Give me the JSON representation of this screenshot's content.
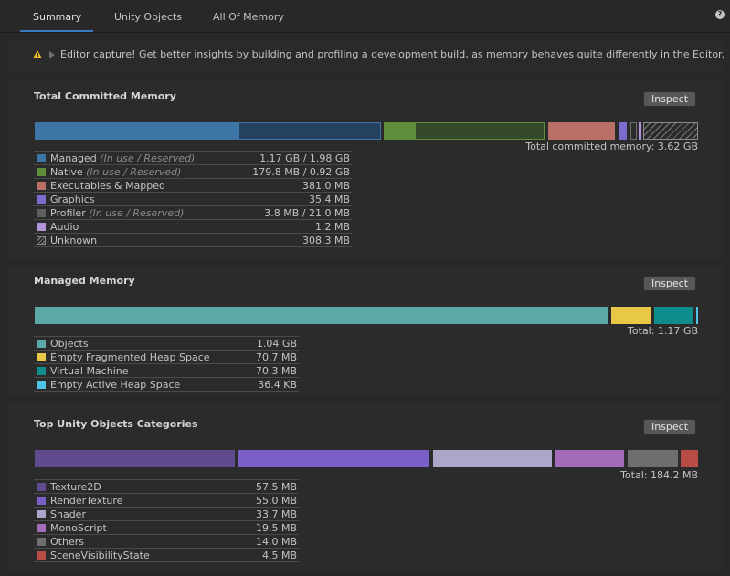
{
  "tabs": [
    {
      "label": "Summary"
    },
    {
      "label": "Unity Objects"
    },
    {
      "label": "All Of Memory"
    }
  ],
  "help_icon": "?",
  "notice": {
    "icon": "warning-icon",
    "text": "Editor capture! Get better insights by building and profiling a development build, as memory behaves quite differently in the Editor."
  },
  "total_committed": {
    "title": "Total Committed Memory",
    "inspect_label": "Inspect",
    "total_text": "Total committed memory: 3.62 GB",
    "items": [
      {
        "name": "Managed",
        "note": "(In use / Reserved)",
        "value": "1.17 GB / 1.98 GB",
        "color": "#3d75a6"
      },
      {
        "name": "Native",
        "note": "(In use / Reserved)",
        "value": "179.8 MB / 0.92 GB",
        "color": "#5f8e3a"
      },
      {
        "name": "Executables & Mapped",
        "note": "",
        "value": "381.0 MB",
        "color": "#b87067"
      },
      {
        "name": "Graphics",
        "note": "",
        "value": "35.4 MB",
        "color": "#7c6cd0"
      },
      {
        "name": "Profiler",
        "note": "(In use / Reserved)",
        "value": "3.8 MB / 21.0 MB",
        "color": "#5e5e5e"
      },
      {
        "name": "Audio",
        "note": "",
        "value": "1.2 MB",
        "color": "#b394d8"
      },
      {
        "name": "Unknown",
        "note": "",
        "value": "308.3 MB",
        "color": "#444444"
      }
    ]
  },
  "managed_memory": {
    "title": "Managed Memory",
    "inspect_label": "Inspect",
    "total_text": "Total: 1.17 GB",
    "items": [
      {
        "name": "Objects",
        "value": "1.04 GB",
        "color": "#5ba8a8"
      },
      {
        "name": "Empty Fragmented Heap Space",
        "value": "70.7 MB",
        "color": "#e8c846"
      },
      {
        "name": "Virtual Machine",
        "value": "70.3 MB",
        "color": "#0f8c8c"
      },
      {
        "name": "Empty Active Heap Space",
        "value": "36.4 KB",
        "color": "#4fc4e4"
      }
    ]
  },
  "top_unity_objects": {
    "title": "Top Unity Objects Categories",
    "inspect_label": "Inspect",
    "total_text": "Total: 184.2 MB",
    "items": [
      {
        "name": "Texture2D",
        "value": "57.5 MB",
        "color": "#5e4a8c"
      },
      {
        "name": "RenderTexture",
        "value": "55.0 MB",
        "color": "#7b5fc8"
      },
      {
        "name": "Shader",
        "value": "33.7 MB",
        "color": "#aea6c8"
      },
      {
        "name": "MonoScript",
        "value": "19.5 MB",
        "color": "#a46cb8"
      },
      {
        "name": "Others",
        "value": "14.0 MB",
        "color": "#6e6e6e"
      },
      {
        "name": "SceneVisibilityState",
        "value": "4.5 MB",
        "color": "#b84c44"
      }
    ]
  }
}
